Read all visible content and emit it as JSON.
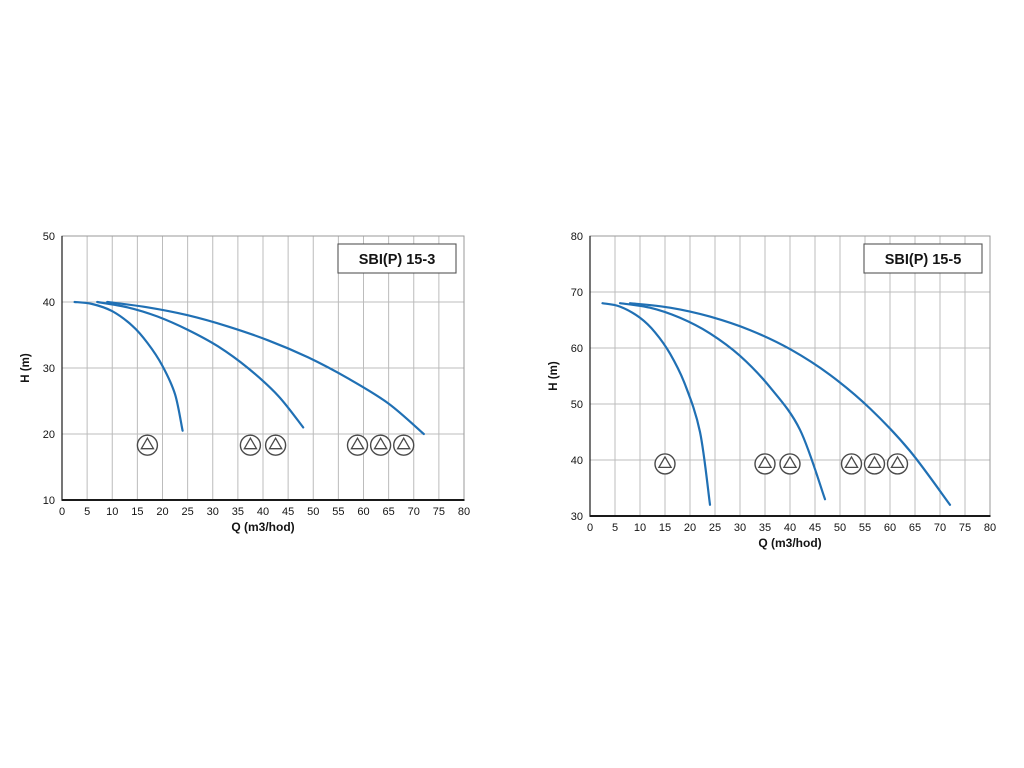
{
  "page": {
    "background": "#ffffff"
  },
  "chart_data": [
    {
      "type": "line",
      "title": "SBI(P) 15-3",
      "xlabel": "Q (m3/hod)",
      "ylabel": "H (m)",
      "xlim": [
        0,
        80
      ],
      "ylim": [
        10,
        50
      ],
      "x_ticks": [
        0,
        5,
        10,
        15,
        20,
        25,
        30,
        35,
        40,
        45,
        50,
        55,
        60,
        65,
        70,
        75,
        80
      ],
      "y_ticks": [
        10,
        20,
        30,
        40,
        50
      ],
      "grid": true,
      "legend": "none",
      "line_color": "#2070b4",
      "series": [
        {
          "name": "1 pump",
          "points": [
            [
              2.5,
              40
            ],
            [
              6,
              39.7
            ],
            [
              10,
              38.6
            ],
            [
              14,
              36.4
            ],
            [
              17,
              33.8
            ],
            [
              20,
              30.3
            ],
            [
              22.5,
              26
            ],
            [
              24,
              20.5
            ]
          ]
        },
        {
          "name": "2 pumps",
          "points": [
            [
              7,
              40
            ],
            [
              13,
              39.2
            ],
            [
              19,
              37.8
            ],
            [
              25,
              35.8
            ],
            [
              31,
              33.3
            ],
            [
              37,
              30
            ],
            [
              43,
              25.8
            ],
            [
              48,
              21
            ]
          ]
        },
        {
          "name": "3 pumps",
          "points": [
            [
              9,
              40
            ],
            [
              17,
              39.2
            ],
            [
              25,
              38
            ],
            [
              33,
              36.3
            ],
            [
              41,
              34.2
            ],
            [
              49,
              31.6
            ],
            [
              57,
              28.4
            ],
            [
              65,
              24.6
            ],
            [
              72,
              20
            ]
          ]
        }
      ],
      "pump_icons": {
        "h": 18.3,
        "groups": [
          [
            17
          ],
          [
            37.5,
            42.5
          ],
          [
            58.8,
            63.4,
            68
          ]
        ]
      }
    },
    {
      "type": "line",
      "title": "SBI(P) 15-5",
      "xlabel": "Q (m3/hod)",
      "ylabel": "H (m)",
      "xlim": [
        0,
        80
      ],
      "ylim": [
        30,
        80
      ],
      "x_ticks": [
        0,
        5,
        10,
        15,
        20,
        25,
        30,
        35,
        40,
        45,
        50,
        55,
        60,
        65,
        70,
        75,
        80
      ],
      "y_ticks": [
        30,
        40,
        50,
        60,
        70,
        80
      ],
      "grid": true,
      "legend": "none",
      "line_color": "#2070b4",
      "series": [
        {
          "name": "1 pump",
          "points": [
            [
              2.5,
              68
            ],
            [
              6,
              67.4
            ],
            [
              10,
              65.4
            ],
            [
              13,
              62.8
            ],
            [
              16,
              59
            ],
            [
              19,
              53.5
            ],
            [
              22,
              45
            ],
            [
              24,
              32
            ]
          ]
        },
        {
          "name": "2 pumps",
          "points": [
            [
              6,
              68
            ],
            [
              12,
              67.2
            ],
            [
              18,
              65.4
            ],
            [
              24,
              62.6
            ],
            [
              30,
              58.6
            ],
            [
              36,
              53
            ],
            [
              42,
              45.4
            ],
            [
              47,
              33
            ]
          ]
        },
        {
          "name": "3 pumps",
          "points": [
            [
              8,
              68
            ],
            [
              16,
              67.2
            ],
            [
              24,
              65.6
            ],
            [
              32,
              63.2
            ],
            [
              40,
              59.8
            ],
            [
              48,
              55.2
            ],
            [
              56,
              49.2
            ],
            [
              64,
              41.6
            ],
            [
              72,
              32
            ]
          ]
        }
      ],
      "pump_icons": {
        "h": 39.3,
        "groups": [
          [
            15
          ],
          [
            35,
            40
          ],
          [
            52.3,
            56.9,
            61.5
          ]
        ]
      }
    }
  ],
  "colors": {
    "curve": "#2070b4",
    "grid": "#bcbcbc",
    "border": "#9a9a9a",
    "axis": "#1a1a1a",
    "pump_symbol": "#4a4a4a",
    "title_box_border": "#555555"
  }
}
